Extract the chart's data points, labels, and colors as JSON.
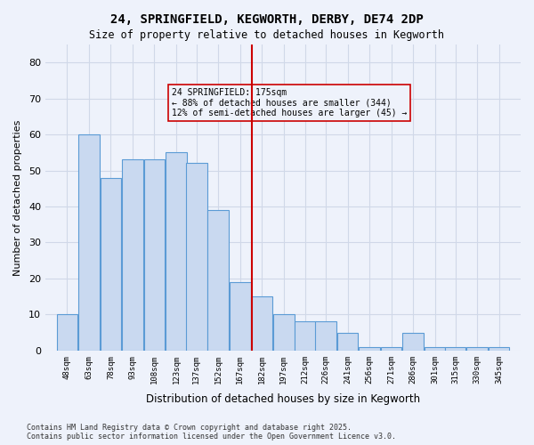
{
  "title_line1": "24, SPRINGFIELD, KEGWORTH, DERBY, DE74 2DP",
  "title_line2": "Size of property relative to detached houses in Kegworth",
  "xlabel": "Distribution of detached houses by size in Kegworth",
  "ylabel": "Number of detached properties",
  "footer_line1": "Contains HM Land Registry data © Crown copyright and database right 2025.",
  "footer_line2": "Contains public sector information licensed under the Open Government Licence v3.0.",
  "categories": [
    "48sqm",
    "63sqm",
    "78sqm",
    "93sqm",
    "108sqm",
    "123sqm",
    "137sqm",
    "152sqm",
    "167sqm",
    "182sqm",
    "197sqm",
    "212sqm",
    "226sqm",
    "241sqm",
    "256sqm",
    "271sqm",
    "286sqm",
    "301sqm",
    "315sqm",
    "330sqm",
    "345sqm"
  ],
  "values": [
    10,
    60,
    48,
    53,
    53,
    55,
    52,
    39,
    19,
    15,
    10,
    8,
    8,
    5,
    1,
    1,
    5,
    1,
    1,
    1,
    1
  ],
  "bar_color": "#c9d9f0",
  "bar_edge_color": "#5b9bd5",
  "grid_color": "#d0d8e8",
  "background_color": "#eef2fb",
  "vline_x": 175,
  "vline_color": "#cc0000",
  "annotation_text": "24 SPRINGFIELD: 175sqm\n← 88% of detached houses are smaller (344)\n12% of semi-detached houses are larger (45) →",
  "annotation_box_edge": "#cc0000",
  "ylim": [
    0,
    85
  ],
  "yticks": [
    0,
    10,
    20,
    30,
    40,
    50,
    60,
    70,
    80
  ],
  "bin_width": 15
}
